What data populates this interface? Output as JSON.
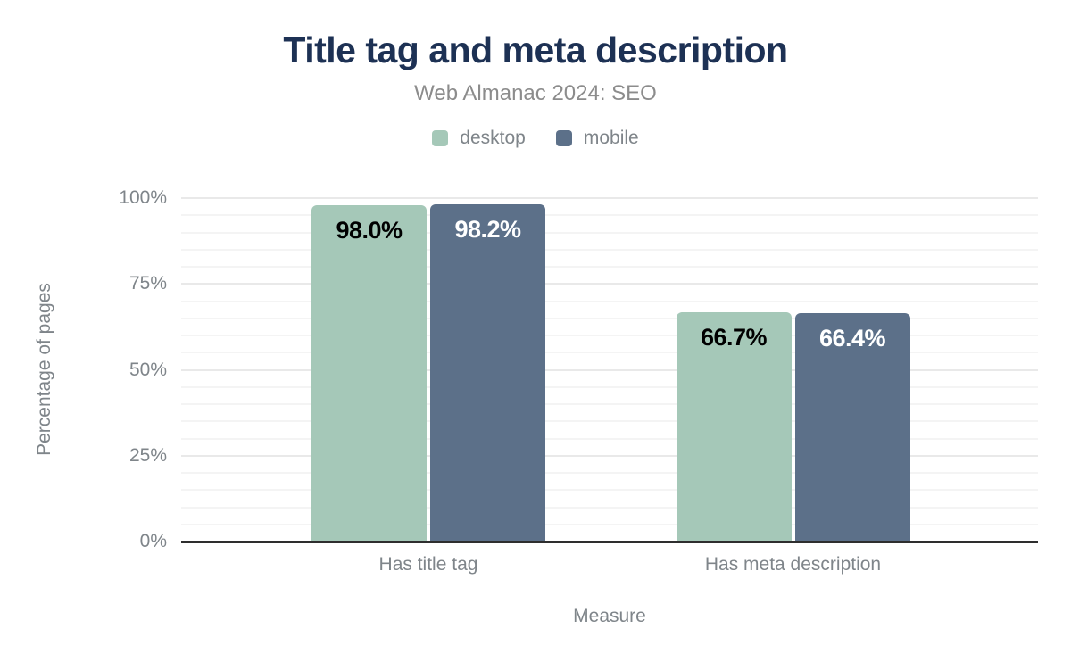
{
  "chart_data": {
    "type": "bar",
    "title": "Title tag and meta description",
    "subtitle": "Web Almanac 2024: SEO",
    "xlabel": "Measure",
    "ylabel": "Percentage of pages",
    "categories": [
      "Has title tag",
      "Has meta description"
    ],
    "series": [
      {
        "name": "desktop",
        "color": "#a5c8b8",
        "value_label_color": "#000000",
        "values": [
          98.0,
          66.7
        ],
        "value_labels": [
          "98.0%",
          "66.7%"
        ]
      },
      {
        "name": "mobile",
        "color": "#5c7089",
        "value_label_color": "#ffffff",
        "values": [
          98.2,
          66.4
        ],
        "value_labels": [
          "98.2%",
          "66.4%"
        ]
      }
    ],
    "ylim": [
      0,
      100
    ],
    "yticks": [
      {
        "value": 0,
        "label": "0%"
      },
      {
        "value": 25,
        "label": "25%"
      },
      {
        "value": 50,
        "label": "50%"
      },
      {
        "value": 75,
        "label": "75%"
      },
      {
        "value": 100,
        "label": "100%"
      }
    ],
    "minor_grid_step": 5,
    "major_grid_step": 25,
    "grid": "horizontal",
    "legend_position": "top"
  },
  "colors": {
    "title": "#1d3154",
    "subtitle": "#8c8c8c",
    "axis_text": "#7f858a",
    "axis_line": "#2e2e2e",
    "grid_major": "#e9e9e9",
    "grid_minor": "#f4f4f4",
    "desktop": "#a5c8b8",
    "mobile": "#5c7089",
    "background": "#ffffff"
  }
}
